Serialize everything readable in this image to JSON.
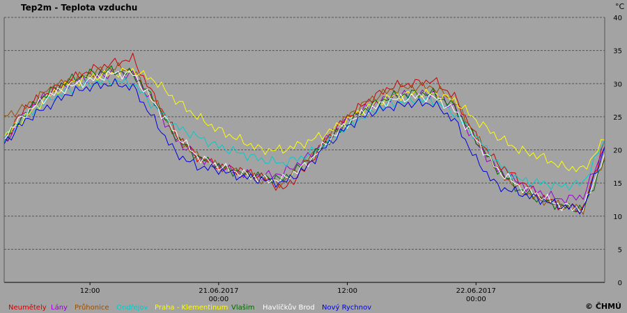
{
  "chart_data": {
    "type": "line",
    "title": "Tep2m - Teplota vzduchu",
    "unit": "°C",
    "ylim": [
      0,
      40
    ],
    "yticks": [
      0,
      5,
      10,
      15,
      20,
      25,
      30,
      35,
      40
    ],
    "grid": true,
    "xlim": [
      "2017-06-20T04:00",
      "2017-06-22T12:00"
    ],
    "xticks": [
      {
        "at": "2017-06-20T12:00",
        "line1": "12:00",
        "line2": ""
      },
      {
        "at": "2017-06-21T00:00",
        "line1": "21.06.2017",
        "line2": "00:00"
      },
      {
        "at": "2017-06-21T12:00",
        "line1": "12:00",
        "line2": ""
      },
      {
        "at": "2017-06-22T00:00",
        "line1": "22.06.2017",
        "line2": "00:00"
      }
    ],
    "legend_position": "bottom",
    "x": [
      "2017-06-20T04:00",
      "2017-06-20T06:00",
      "2017-06-20T08:00",
      "2017-06-20T10:00",
      "2017-06-20T12:00",
      "2017-06-20T14:00",
      "2017-06-20T16:00",
      "2017-06-20T18:00",
      "2017-06-20T20:00",
      "2017-06-20T22:00",
      "2017-06-21T00:00",
      "2017-06-21T02:00",
      "2017-06-21T04:00",
      "2017-06-21T06:00",
      "2017-06-21T08:00",
      "2017-06-21T10:00",
      "2017-06-21T12:00",
      "2017-06-21T14:00",
      "2017-06-21T16:00",
      "2017-06-21T18:00",
      "2017-06-21T20:00",
      "2017-06-21T22:00",
      "2017-06-22T00:00",
      "2017-06-22T02:00",
      "2017-06-22T04:00",
      "2017-06-22T06:00",
      "2017-06-22T08:00",
      "2017-06-22T10:00",
      "2017-06-22T12:00"
    ],
    "series": [
      {
        "name": "Neumětely",
        "color": "#cc0000",
        "values": [
          21.5,
          26.5,
          28.5,
          30.5,
          32,
          33,
          33.8,
          28,
          22.5,
          19,
          17.5,
          17,
          16,
          14,
          17,
          21.5,
          25,
          27.5,
          29.5,
          30,
          30.5,
          28,
          22,
          18,
          15.5,
          13,
          11.5,
          11,
          21.5
        ]
      },
      {
        "name": "Lány",
        "color": "#9900cc",
        "values": [
          21,
          25.5,
          28.5,
          30,
          31,
          31.5,
          31.5,
          27,
          21.5,
          19,
          17.5,
          16.5,
          16,
          16.5,
          18.5,
          21.5,
          24.5,
          26.5,
          28,
          28.5,
          28.5,
          26.5,
          21,
          17,
          15,
          13.5,
          12.5,
          13,
          20.5
        ]
      },
      {
        "name": "Průhonice",
        "color": "#994d00",
        "values": [
          25,
          26.5,
          29,
          30.5,
          31.5,
          32.5,
          32,
          27.5,
          22,
          19,
          17.5,
          16.5,
          15.5,
          15,
          18,
          21.5,
          25,
          27.5,
          29,
          29.5,
          29.5,
          27.5,
          22,
          17,
          14,
          12.5,
          11.5,
          11,
          19
        ]
      },
      {
        "name": "Ondřejov",
        "color": "#00cccc",
        "values": [
          21.5,
          25,
          27.5,
          29,
          30,
          30.5,
          30,
          26.5,
          23.5,
          22,
          20.5,
          19.5,
          18.5,
          18,
          19,
          21,
          23.5,
          25.5,
          27,
          27.5,
          27.5,
          25.5,
          22,
          18,
          15.5,
          15,
          14.5,
          15,
          21.5
        ]
      },
      {
        "name": "Praha - Klementinum",
        "color": "#ffff00",
        "values": [
          22,
          25,
          28,
          30,
          31,
          31.5,
          32,
          30.5,
          27.5,
          25,
          23,
          21.5,
          20,
          20,
          21,
          22.5,
          24.5,
          26.5,
          28,
          28.5,
          28.5,
          27.5,
          24.5,
          22,
          20,
          19,
          17.5,
          17,
          21.5
        ]
      },
      {
        "name": "Vlašim",
        "color": "#006600",
        "values": [
          21.5,
          25.5,
          28.5,
          30.5,
          31.5,
          32,
          31.5,
          27.5,
          22,
          19,
          17.5,
          16.5,
          16,
          15.5,
          18,
          21,
          24,
          26.5,
          28,
          28.5,
          28.5,
          26.5,
          21.5,
          17,
          14,
          12.5,
          11.5,
          11,
          18.5
        ]
      },
      {
        "name": "Havlíčkův Brod",
        "color": "#ffffff",
        "values": [
          22,
          25.5,
          28,
          29.5,
          30.5,
          31.5,
          31.5,
          27,
          22.5,
          19,
          17.5,
          16.5,
          15.5,
          15.5,
          17.5,
          21,
          24,
          26,
          27.5,
          28,
          28,
          26,
          21.5,
          17,
          14.5,
          13,
          11.5,
          11,
          19.5
        ]
      },
      {
        "name": "Nový Rychnov",
        "color": "#0000dd",
        "values": [
          21,
          24.5,
          26.5,
          28.5,
          29.5,
          30,
          29.5,
          24.5,
          19.5,
          17.5,
          17,
          16,
          15.5,
          15,
          17,
          20.5,
          23.5,
          25.5,
          26.5,
          27,
          27,
          24.5,
          18.5,
          14.5,
          13.5,
          12.5,
          11.5,
          11,
          20.5
        ]
      }
    ],
    "credit": "© ČHMÚ"
  }
}
